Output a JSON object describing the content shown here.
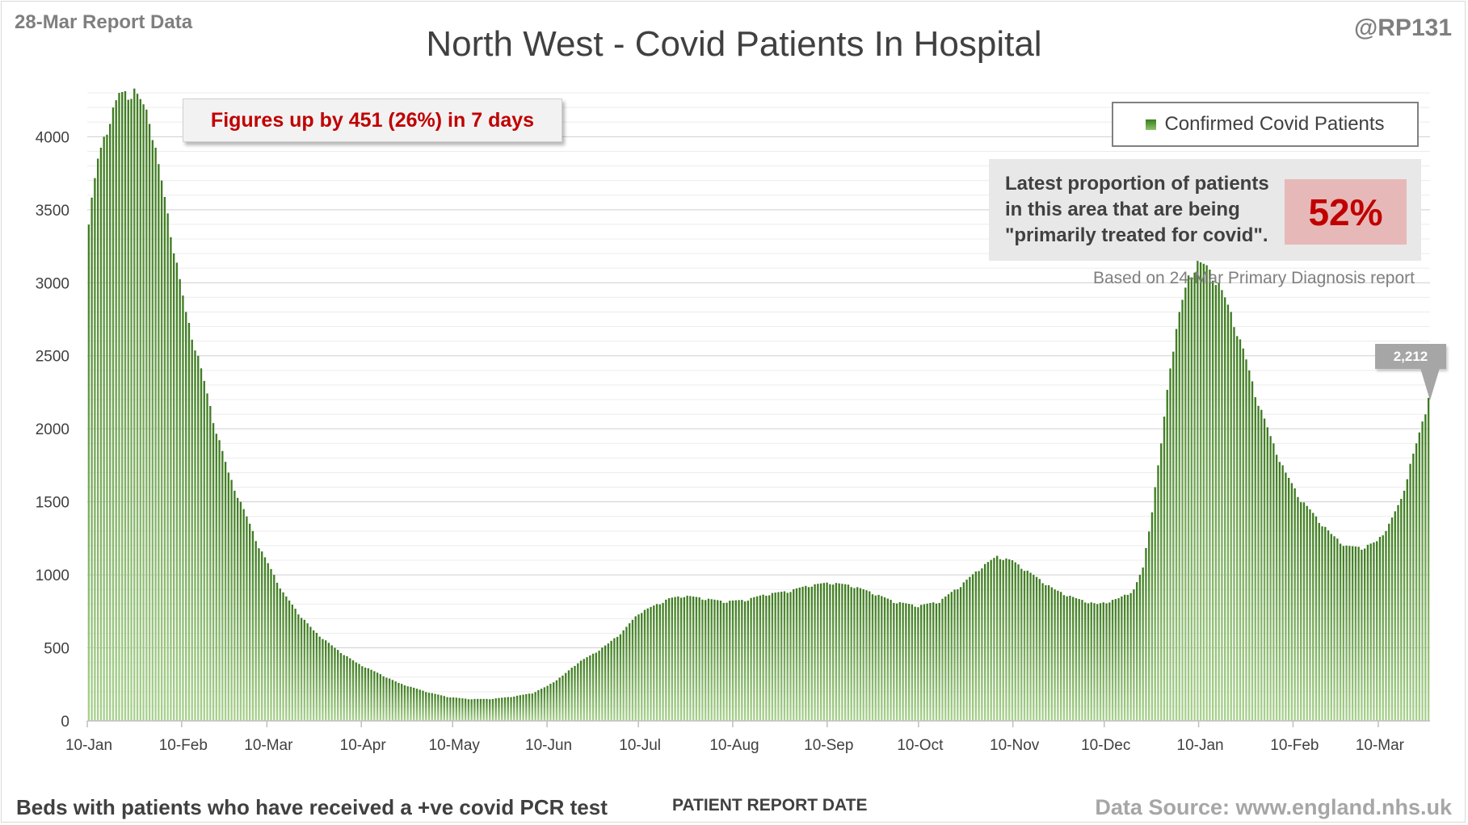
{
  "header": {
    "report_label": "28-Mar Report Data",
    "handle": "@RP131"
  },
  "change_annotation": "Figures up by 451 (26%) in 7 days",
  "proportion_panel": {
    "text": "Latest proportion of patients in this area that are being \"primarily treated for covid\".",
    "value": "52%",
    "note": "Based on 24-Mar Primary Diagnosis report"
  },
  "latest_value_label": "2,212",
  "footer": {
    "left": "Beds with patients who have received a +ve covid PCR test",
    "xaxis_title": "PATIENT REPORT DATE",
    "source": "Data Source: www.england.nhs.uk"
  },
  "colors": {
    "bar_dark": "#3d7a1f",
    "bar_light": "#a9d18e",
    "grid": "#d9d9d9",
    "annotation_red": "#c00000",
    "value_box_bg": "#e6b9b8"
  },
  "chart_data": {
    "type": "bar",
    "title": "North West - Covid Patients In Hospital",
    "xlabel": "PATIENT REPORT DATE",
    "ylabel": "",
    "ylim": [
      0,
      4400
    ],
    "yticks": [
      0,
      500,
      1000,
      1500,
      2000,
      2500,
      3000,
      3500,
      4000
    ],
    "grid": true,
    "legend_position": "top-right",
    "x_start": "2021-01-10",
    "x_end": "2022-03-27",
    "x_tick_labels": [
      "10-Jan",
      "10-Feb",
      "10-Mar",
      "10-Apr",
      "10-May",
      "10-Jun",
      "10-Jul",
      "10-Aug",
      "10-Sep",
      "10-Oct",
      "10-Nov",
      "10-Dec",
      "10-Jan",
      "10-Feb",
      "10-Mar"
    ],
    "x_tick_dates": [
      "2021-01-10",
      "2021-02-10",
      "2021-03-10",
      "2021-04-10",
      "2021-05-10",
      "2021-06-10",
      "2021-07-10",
      "2021-08-10",
      "2021-09-10",
      "2021-10-10",
      "2021-11-10",
      "2021-12-10",
      "2022-01-10",
      "2022-02-10",
      "2022-03-10"
    ],
    "series": [
      {
        "name": "Confirmed Covid Patients",
        "points": [
          [
            "2021-01-10",
            3450
          ],
          [
            "2021-01-13",
            3850
          ],
          [
            "2021-01-17",
            4150
          ],
          [
            "2021-01-20",
            4300
          ],
          [
            "2021-01-25",
            4330
          ],
          [
            "2021-01-30",
            4150
          ],
          [
            "2021-02-03",
            3700
          ],
          [
            "2021-02-07",
            3250
          ],
          [
            "2021-02-11",
            2800
          ],
          [
            "2021-02-15",
            2500
          ],
          [
            "2021-02-20",
            2070
          ],
          [
            "2021-02-25",
            1700
          ],
          [
            "2021-03-02",
            1450
          ],
          [
            "2021-03-07",
            1200
          ],
          [
            "2021-03-10",
            1080
          ],
          [
            "2021-03-15",
            880
          ],
          [
            "2021-03-20",
            740
          ],
          [
            "2021-03-25",
            620
          ],
          [
            "2021-04-01",
            500
          ],
          [
            "2021-04-08",
            400
          ],
          [
            "2021-04-15",
            330
          ],
          [
            "2021-04-22",
            260
          ],
          [
            "2021-05-01",
            200
          ],
          [
            "2021-05-08",
            165
          ],
          [
            "2021-05-15",
            150
          ],
          [
            "2021-05-22",
            150
          ],
          [
            "2021-05-29",
            165
          ],
          [
            "2021-06-05",
            190
          ],
          [
            "2021-06-10",
            240
          ],
          [
            "2021-06-15",
            310
          ],
          [
            "2021-06-20",
            400
          ],
          [
            "2021-06-25",
            460
          ],
          [
            "2021-06-30",
            530
          ],
          [
            "2021-07-05",
            620
          ],
          [
            "2021-07-10",
            740
          ],
          [
            "2021-07-15",
            790
          ],
          [
            "2021-07-20",
            840
          ],
          [
            "2021-07-25",
            860
          ],
          [
            "2021-08-01",
            840
          ],
          [
            "2021-08-07",
            820
          ],
          [
            "2021-08-14",
            830
          ],
          [
            "2021-08-21",
            870
          ],
          [
            "2021-08-28",
            890
          ],
          [
            "2021-09-04",
            930
          ],
          [
            "2021-09-11",
            950
          ],
          [
            "2021-09-18",
            930
          ],
          [
            "2021-09-25",
            880
          ],
          [
            "2021-10-02",
            820
          ],
          [
            "2021-10-10",
            790
          ],
          [
            "2021-10-17",
            820
          ],
          [
            "2021-10-24",
            930
          ],
          [
            "2021-10-31",
            1060
          ],
          [
            "2021-11-05",
            1130
          ],
          [
            "2021-11-10",
            1100
          ],
          [
            "2021-11-17",
            1000
          ],
          [
            "2021-11-24",
            900
          ],
          [
            "2021-12-01",
            840
          ],
          [
            "2021-12-08",
            800
          ],
          [
            "2021-12-15",
            840
          ],
          [
            "2021-12-20",
            900
          ],
          [
            "2021-12-23",
            1050
          ],
          [
            "2021-12-26",
            1450
          ],
          [
            "2021-12-29",
            1900
          ],
          [
            "2022-01-01",
            2450
          ],
          [
            "2022-01-04",
            2800
          ],
          [
            "2022-01-07",
            3050
          ],
          [
            "2022-01-10",
            3150
          ],
          [
            "2022-01-13",
            3120
          ],
          [
            "2022-01-17",
            3000
          ],
          [
            "2022-01-21",
            2800
          ],
          [
            "2022-01-25",
            2550
          ],
          [
            "2022-01-29",
            2250
          ],
          [
            "2022-02-03",
            1950
          ],
          [
            "2022-02-08",
            1700
          ],
          [
            "2022-02-13",
            1520
          ],
          [
            "2022-02-18",
            1400
          ],
          [
            "2022-02-23",
            1280
          ],
          [
            "2022-02-28",
            1200
          ],
          [
            "2022-03-05",
            1190
          ],
          [
            "2022-03-10",
            1230
          ],
          [
            "2022-03-14",
            1350
          ],
          [
            "2022-03-18",
            1520
          ],
          [
            "2022-03-21",
            1760
          ],
          [
            "2022-03-23",
            1900
          ],
          [
            "2022-03-25",
            2050
          ],
          [
            "2022-03-27",
            2212
          ]
        ]
      }
    ]
  }
}
